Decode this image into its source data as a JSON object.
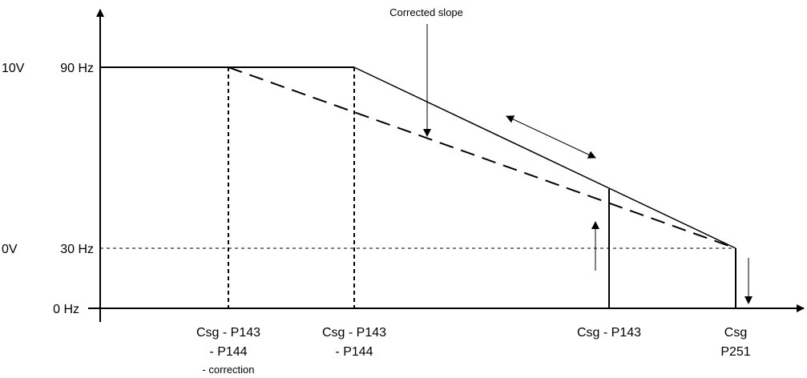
{
  "y_labels": {
    "top_volt": "10V",
    "top_freq": "90 Hz",
    "mid_volt": "0V",
    "mid_freq": "30 Hz",
    "bottom_freq": "0 Hz"
  },
  "annotation": "Corrected slope",
  "x_labels": {
    "a_line1": "Csg - P143",
    "a_line2": "- P144",
    "a_line3": "- correction",
    "b_line1": "Csg - P143",
    "b_line2": "- P144",
    "c_line1": "Csg - P143",
    "d_line1": "Csg",
    "d_line2": "P251"
  }
}
